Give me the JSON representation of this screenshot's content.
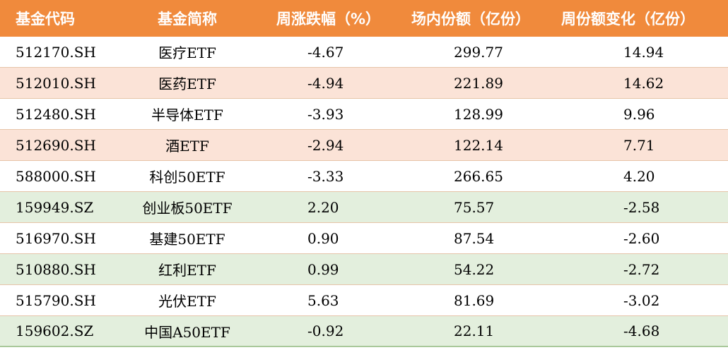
{
  "headers": [
    "基金代码",
    "基金简称",
    "周涨跌幅（%）",
    "场内份额（亿份）",
    "周份额变化（亿份）"
  ],
  "rows": [
    {
      "code": "512170.SH",
      "name": "医疗ETF",
      "change": "-4.67",
      "shares": "299.77",
      "delta": "14.94",
      "shade": "white"
    },
    {
      "code": "512010.SH",
      "name": "医药ETF",
      "change": "-4.94",
      "shares": "221.89",
      "delta": "14.62",
      "shade": "pink"
    },
    {
      "code": "512480.SH",
      "name": "半导体ETF",
      "change": "-3.93",
      "shares": "128.99",
      "delta": "9.96",
      "shade": "white"
    },
    {
      "code": "512690.SH",
      "name": "酒ETF",
      "change": "-2.94",
      "shares": "122.14",
      "delta": "7.71",
      "shade": "pink"
    },
    {
      "code": "588000.SH",
      "name": "科创50ETF",
      "change": "-3.33",
      "shares": "266.65",
      "delta": "4.20",
      "shade": "white"
    },
    {
      "code": "159949.SZ",
      "name": "创业板50ETF",
      "change": "2.20",
      "shares": "75.57",
      "delta": "-2.58",
      "shade": "green"
    },
    {
      "code": "516970.SH",
      "name": "基建50ETF",
      "change": "0.90",
      "shares": "87.54",
      "delta": "-2.60",
      "shade": "white"
    },
    {
      "code": "510880.SH",
      "name": "红利ETF",
      "change": "0.99",
      "shares": "54.22",
      "delta": "-2.72",
      "shade": "green"
    },
    {
      "code": "515790.SH",
      "name": "光伏ETF",
      "change": "5.63",
      "shares": "81.69",
      "delta": "-3.02",
      "shade": "white"
    },
    {
      "code": "159602.SZ",
      "name": "中国A50ETF",
      "change": "-0.92",
      "shares": "22.11",
      "delta": "-4.68",
      "shade": "green"
    }
  ],
  "colors": {
    "header": "#f08a3c",
    "pink": "#fbe3d7",
    "green": "#e3efdd"
  }
}
